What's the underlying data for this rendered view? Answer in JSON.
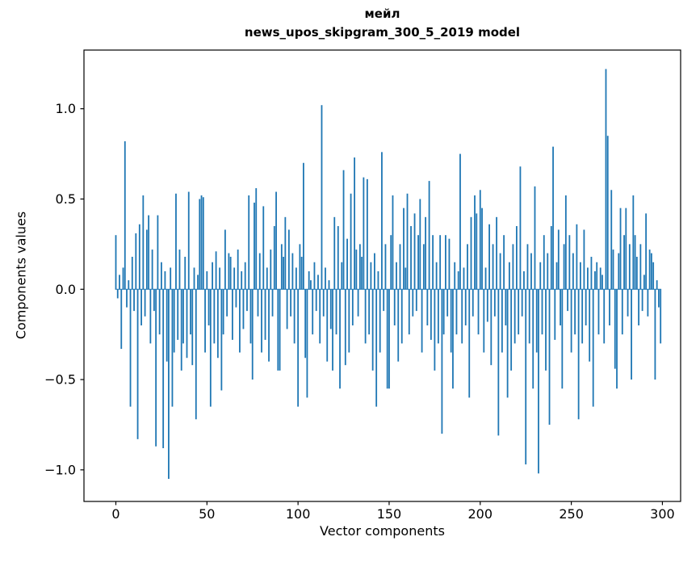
{
  "chart_data": {
    "type": "bar",
    "title": "мейл",
    "subtitle": "news_upos_skipgram_300_5_2019 model",
    "xlabel": "Vector components",
    "ylabel": "Components values",
    "bar_color": "#1f77b4",
    "axis_color": "#000000",
    "xlim": [
      -17.5,
      310
    ],
    "ylim": [
      -1.175,
      1.325
    ],
    "xticks": [
      0,
      50,
      100,
      150,
      200,
      250,
      300
    ],
    "yticks": [
      -1.0,
      -0.5,
      0.0,
      0.5,
      1.0
    ],
    "n_components": 300,
    "legend": null,
    "grid": false,
    "values": [
      0.3,
      -0.05,
      0.08,
      -0.33,
      0.12,
      0.82,
      -0.1,
      0.05,
      -0.65,
      0.18,
      -0.12,
      0.31,
      -0.83,
      0.36,
      -0.2,
      0.52,
      -0.15,
      0.33,
      0.41,
      -0.3,
      0.22,
      -0.12,
      -0.87,
      0.41,
      -0.25,
      0.15,
      -0.88,
      0.1,
      -0.4,
      -1.05,
      0.12,
      -0.65,
      -0.35,
      0.53,
      -0.28,
      0.22,
      -0.45,
      -0.3,
      0.18,
      -0.38,
      0.54,
      -0.25,
      -0.42,
      0.12,
      -0.72,
      0.08,
      0.5,
      0.52,
      0.51,
      -0.35,
      0.1,
      -0.2,
      -0.65,
      0.15,
      -0.3,
      0.21,
      -0.38,
      0.12,
      -0.56,
      -0.25,
      0.33,
      -0.15,
      0.2,
      0.18,
      -0.28,
      0.12,
      -0.1,
      0.22,
      -0.35,
      0.1,
      -0.22,
      0.15,
      -0.12,
      0.52,
      -0.3,
      -0.5,
      0.48,
      0.56,
      -0.15,
      0.2,
      -0.35,
      0.46,
      -0.28,
      0.12,
      -0.4,
      0.22,
      -0.15,
      0.35,
      0.54,
      -0.45,
      -0.45,
      0.25,
      0.18,
      0.4,
      -0.22,
      0.33,
      -0.15,
      0.2,
      -0.3,
      0.12,
      -0.65,
      0.25,
      0.18,
      0.7,
      -0.38,
      -0.6,
      0.1,
      0.05,
      -0.25,
      0.15,
      -0.12,
      0.08,
      -0.3,
      1.02,
      -0.15,
      0.12,
      -0.4,
      0.05,
      -0.22,
      -0.45,
      0.4,
      -0.25,
      0.35,
      -0.55,
      0.15,
      0.66,
      -0.42,
      0.28,
      -0.35,
      0.53,
      -0.2,
      0.73,
      0.22,
      -0.15,
      0.25,
      0.18,
      0.62,
      -0.3,
      0.61,
      -0.25,
      0.15,
      -0.45,
      0.2,
      -0.65,
      0.1,
      -0.35,
      0.76,
      -0.12,
      0.25,
      -0.55,
      -0.55,
      0.3,
      0.52,
      -0.2,
      0.15,
      -0.4,
      0.25,
      -0.3,
      0.45,
      0.12,
      0.53,
      -0.25,
      0.35,
      -0.15,
      0.42,
      -0.12,
      0.3,
      0.5,
      -0.35,
      0.25,
      0.4,
      -0.2,
      0.6,
      -0.28,
      0.3,
      -0.45,
      0.15,
      -0.3,
      0.3,
      -0.8,
      -0.25,
      0.3,
      -0.15,
      0.28,
      -0.35,
      -0.55,
      0.15,
      -0.25,
      0.1,
      0.75,
      -0.3,
      0.12,
      -0.2,
      0.25,
      -0.6,
      0.4,
      -0.15,
      0.52,
      0.42,
      -0.25,
      0.55,
      0.45,
      -0.35,
      0.12,
      -0.18,
      0.36,
      -0.42,
      0.25,
      -0.15,
      0.4,
      -0.81,
      0.2,
      -0.35,
      0.3,
      -0.2,
      -0.6,
      0.15,
      -0.45,
      0.25,
      -0.3,
      0.35,
      -0.25,
      0.68,
      -0.15,
      0.1,
      -0.97,
      0.25,
      -0.3,
      0.2,
      -0.55,
      0.57,
      -0.35,
      -1.02,
      0.15,
      -0.25,
      0.3,
      -0.45,
      0.2,
      -0.75,
      0.35,
      0.79,
      -0.28,
      0.15,
      0.33,
      -0.2,
      -0.55,
      0.25,
      0.52,
      -0.12,
      0.3,
      -0.35,
      0.2,
      -0.25,
      0.36,
      -0.72,
      0.15,
      -0.3,
      0.33,
      -0.2,
      0.12,
      -0.4,
      0.18,
      -0.65,
      0.1,
      0.15,
      -0.25,
      0.12,
      0.08,
      -0.3,
      1.22,
      0.85,
      -0.2,
      0.55,
      0.22,
      -0.44,
      -0.55,
      0.2,
      0.45,
      -0.25,
      0.3,
      0.45,
      -0.15,
      0.25,
      -0.5,
      0.52,
      0.3,
      0.18,
      -0.2,
      0.25,
      -0.12,
      0.08,
      0.42,
      -0.15,
      0.22,
      0.2,
      0.15,
      -0.5,
      0.05,
      -0.1,
      -0.3
    ]
  }
}
